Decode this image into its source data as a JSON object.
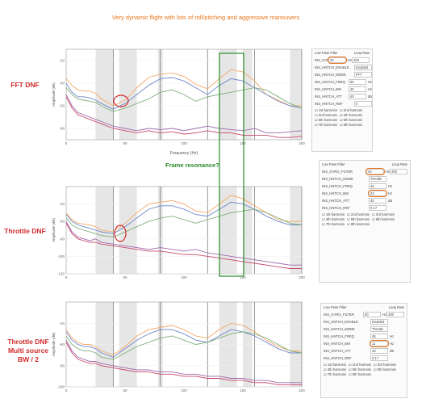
{
  "title": "Very dynamic flight with lots of roll/pitching and aggressive manouvers",
  "labels": {
    "fft": "FFT DNF",
    "throttle": "Throttle DNF",
    "multi_line1": "Throttle DNF",
    "multi_line2": "Multi source",
    "multi_line3": "BW / 2",
    "resonance": "Frame resonance?"
  },
  "colors": {
    "orange": "#f4a86a",
    "blue": "#6f86c9",
    "green": "#7fb07a",
    "purple": "#a06ab0",
    "red": "#c8486a",
    "annot_red": "#d22a2a",
    "annot_green": "#2a8a2a",
    "annot_orange": "#e8761d"
  },
  "chart_data": [
    {
      "type": "line",
      "xlabel": "Frequency (Hz)",
      "ylabel": "Amplitude (dB)",
      "xlim": [
        0,
        200
      ],
      "ylim": [
        -90,
        -10
      ],
      "xticks": [
        "0",
        "50",
        "100",
        "150",
        "200"
      ],
      "yticks": [
        "-20",
        "-40",
        "-60",
        "-80"
      ],
      "series": [
        {
          "color": "orange",
          "x": [
            0,
            5,
            10,
            15,
            20,
            25,
            30,
            40,
            50,
            60,
            70,
            80,
            90,
            100,
            110,
            120,
            130,
            140,
            150,
            160,
            170,
            180,
            190,
            200
          ],
          "y": [
            -36,
            -42,
            -46,
            -47,
            -47,
            -49,
            -54,
            -60,
            -55,
            -44,
            -35,
            -32,
            -31,
            -34,
            -41,
            -45,
            -36,
            -28,
            -30,
            -38,
            -50,
            -55,
            -60,
            -60
          ]
        },
        {
          "color": "blue",
          "x": [
            0,
            5,
            10,
            15,
            20,
            25,
            30,
            40,
            50,
            60,
            70,
            80,
            90,
            100,
            110,
            120,
            130,
            140,
            150,
            160,
            170,
            180,
            190,
            200
          ],
          "y": [
            -40,
            -48,
            -52,
            -52,
            -53,
            -55,
            -58,
            -63,
            -58,
            -50,
            -42,
            -36,
            -35,
            -38,
            -44,
            -50,
            -42,
            -36,
            -38,
            -44,
            -50,
            -56,
            -60,
            -62
          ]
        },
        {
          "color": "green",
          "x": [
            0,
            5,
            10,
            15,
            20,
            25,
            30,
            40,
            50,
            60,
            70,
            80,
            90,
            100,
            110,
            120,
            130,
            140,
            150,
            160,
            170,
            180,
            190,
            200
          ],
          "y": [
            -44,
            -50,
            -54,
            -55,
            -56,
            -57,
            -60,
            -65,
            -62,
            -58,
            -54,
            -48,
            -46,
            -50,
            -56,
            -52,
            -50,
            -48,
            -46,
            -44,
            -46,
            -52,
            -58,
            -62
          ]
        },
        {
          "color": "purple",
          "x": [
            0,
            5,
            10,
            15,
            20,
            25,
            30,
            40,
            50,
            60,
            70,
            80,
            90,
            100,
            110,
            120,
            130,
            140,
            150,
            160,
            170,
            180,
            190,
            200
          ],
          "y": [
            -50,
            -60,
            -66,
            -68,
            -70,
            -72,
            -74,
            -78,
            -80,
            -82,
            -80,
            -81,
            -80,
            -82,
            -80,
            -78,
            -80,
            -81,
            -82,
            -80,
            -84,
            -84,
            -83,
            -82
          ]
        },
        {
          "color": "red",
          "x": [
            0,
            5,
            10,
            15,
            20,
            25,
            30,
            40,
            50,
            60,
            70,
            80,
            90,
            100,
            110,
            120,
            130,
            140,
            150,
            160,
            170,
            180,
            190,
            200
          ],
          "y": [
            -52,
            -62,
            -68,
            -70,
            -72,
            -74,
            -76,
            -80,
            -82,
            -84,
            -82,
            -84,
            -83,
            -85,
            -84,
            -82,
            -84,
            -84,
            -86,
            -86,
            -86,
            -88,
            -88,
            -87
          ]
        }
      ]
    },
    {
      "type": "line",
      "xlabel": "",
      "ylabel": "Amplitude (dB)",
      "xlim": [
        0,
        200
      ],
      "ylim": [
        -120,
        -20
      ],
      "xticks": [
        "0",
        "50",
        "100",
        "150",
        "200"
      ],
      "yticks": [
        "-40",
        "-60",
        "-80",
        "-100",
        "-120"
      ],
      "series": [
        {
          "color": "orange",
          "x": [
            0,
            5,
            10,
            15,
            20,
            25,
            30,
            40,
            50,
            60,
            70,
            80,
            90,
            100,
            110,
            120,
            130,
            140,
            150,
            160,
            170,
            180,
            190,
            200
          ],
          "y": [
            -50,
            -58,
            -62,
            -63,
            -64,
            -66,
            -70,
            -72,
            -62,
            -50,
            -40,
            -38,
            -36,
            -40,
            -48,
            -50,
            -40,
            -30,
            -34,
            -42,
            -50,
            -58,
            -60,
            -60
          ]
        },
        {
          "color": "blue",
          "x": [
            0,
            5,
            10,
            15,
            20,
            25,
            30,
            40,
            50,
            60,
            70,
            80,
            90,
            100,
            110,
            120,
            130,
            140,
            150,
            160,
            170,
            180,
            190,
            200
          ],
          "y": [
            -52,
            -60,
            -64,
            -66,
            -68,
            -70,
            -72,
            -74,
            -66,
            -56,
            -46,
            -42,
            -42,
            -46,
            -52,
            -54,
            -46,
            -38,
            -40,
            -46,
            -54,
            -60,
            -64,
            -64
          ]
        },
        {
          "color": "green",
          "x": [
            0,
            5,
            10,
            15,
            20,
            25,
            30,
            40,
            50,
            60,
            70,
            80,
            90,
            100,
            110,
            120,
            130,
            140,
            150,
            160,
            170,
            180,
            190,
            200
          ],
          "y": [
            -56,
            -64,
            -68,
            -70,
            -72,
            -74,
            -76,
            -78,
            -72,
            -66,
            -60,
            -56,
            -54,
            -58,
            -62,
            -58,
            -54,
            -50,
            -48,
            -46,
            -50,
            -56,
            -62,
            -64
          ]
        },
        {
          "color": "purple",
          "x": [
            0,
            5,
            10,
            15,
            20,
            25,
            30,
            40,
            50,
            60,
            70,
            80,
            90,
            100,
            110,
            120,
            130,
            140,
            150,
            160,
            170,
            180,
            190,
            200
          ],
          "y": [
            -60,
            -72,
            -78,
            -80,
            -82,
            -80,
            -84,
            -86,
            -88,
            -90,
            -92,
            -90,
            -92,
            -94,
            -92,
            -96,
            -98,
            -100,
            -102,
            -104,
            -106,
            -108,
            -110,
            -110
          ]
        },
        {
          "color": "red",
          "x": [
            0,
            5,
            10,
            15,
            20,
            25,
            30,
            40,
            50,
            60,
            70,
            80,
            90,
            100,
            110,
            120,
            130,
            140,
            150,
            160,
            170,
            180,
            190,
            200
          ],
          "y": [
            -62,
            -74,
            -80,
            -82,
            -84,
            -84,
            -86,
            -88,
            -90,
            -92,
            -94,
            -94,
            -96,
            -98,
            -98,
            -100,
            -102,
            -104,
            -106,
            -108,
            -110,
            -112,
            -114,
            -114
          ]
        }
      ]
    },
    {
      "type": "line",
      "xlabel": "",
      "ylabel": "Amplitude (dB)",
      "xlim": [
        0,
        200
      ],
      "ylim": [
        -100,
        -20
      ],
      "xticks": [
        "0",
        "50",
        "100",
        "150",
        "200"
      ],
      "yticks": [
        "-40",
        "-60",
        "-80",
        "-100"
      ],
      "series": [
        {
          "color": "orange",
          "x": [
            0,
            5,
            10,
            15,
            20,
            25,
            30,
            40,
            50,
            60,
            70,
            80,
            90,
            100,
            110,
            120,
            130,
            140,
            150,
            160,
            170,
            180,
            190,
            200
          ],
          "y": [
            -46,
            -54,
            -58,
            -60,
            -60,
            -62,
            -66,
            -70,
            -62,
            -52,
            -46,
            -44,
            -42,
            -46,
            -52,
            -54,
            -46,
            -40,
            -42,
            -48,
            -56,
            -62,
            -66,
            -66
          ]
        },
        {
          "color": "blue",
          "x": [
            0,
            5,
            10,
            15,
            20,
            25,
            30,
            40,
            50,
            60,
            70,
            80,
            90,
            100,
            110,
            120,
            130,
            140,
            150,
            160,
            170,
            180,
            190,
            200
          ],
          "y": [
            -48,
            -56,
            -60,
            -62,
            -62,
            -64,
            -68,
            -72,
            -64,
            -56,
            -50,
            -46,
            -46,
            -50,
            -56,
            -58,
            -52,
            -46,
            -48,
            -52,
            -58,
            -64,
            -68,
            -68
          ]
        },
        {
          "color": "green",
          "x": [
            0,
            5,
            10,
            15,
            20,
            25,
            30,
            40,
            50,
            60,
            70,
            80,
            90,
            100,
            110,
            120,
            130,
            140,
            150,
            160,
            170,
            180,
            190,
            200
          ],
          "y": [
            -52,
            -60,
            -64,
            -66,
            -66,
            -68,
            -72,
            -74,
            -68,
            -62,
            -58,
            -54,
            -52,
            -56,
            -60,
            -58,
            -54,
            -50,
            -48,
            -50,
            -54,
            -60,
            -66,
            -68
          ]
        },
        {
          "color": "purple",
          "x": [
            0,
            5,
            10,
            15,
            20,
            25,
            30,
            40,
            50,
            60,
            70,
            80,
            90,
            100,
            110,
            120,
            130,
            140,
            150,
            160,
            170,
            180,
            190,
            200
          ],
          "y": [
            -56,
            -66,
            -72,
            -74,
            -76,
            -76,
            -78,
            -80,
            -82,
            -84,
            -84,
            -86,
            -86,
            -88,
            -88,
            -90,
            -90,
            -92,
            -92,
            -94,
            -94,
            -96,
            -96,
            -96
          ]
        },
        {
          "color": "red",
          "x": [
            0,
            5,
            10,
            15,
            20,
            25,
            30,
            40,
            50,
            60,
            70,
            80,
            90,
            100,
            110,
            120,
            130,
            140,
            150,
            160,
            170,
            180,
            190,
            200
          ],
          "y": [
            -58,
            -68,
            -74,
            -76,
            -78,
            -78,
            -80,
            -82,
            -84,
            -86,
            -86,
            -88,
            -88,
            -90,
            -90,
            -92,
            -92,
            -94,
            -94,
            -96,
            -96,
            -98,
            -98,
            -98
          ]
        }
      ]
    }
  ],
  "panels": [
    {
      "low_pass_title": "Low Pass Filter",
      "loop_rate_title": "Loop Rate",
      "rows": [
        {
          "label": "INS_GYRO_FILTER",
          "value": "40",
          "unit": "Hz"
        },
        {
          "label": "INS_HNTCH_ENABLE",
          "value": "Enabled",
          "unit": ""
        },
        {
          "label": "INS_HNTCH_MODE",
          "value": "FFT",
          "unit": ""
        },
        {
          "label": "INS_HNTCH_FREQ",
          "value": "80",
          "unit": "Hz"
        },
        {
          "label": "INS_HNTCH_BW",
          "value": "40",
          "unit": "Hz"
        },
        {
          "label": "INS_HNTCH_ATT",
          "value": "40",
          "unit": "dB"
        },
        {
          "label": "INS_HNTCH_REF",
          "value": "0",
          "unit": ""
        }
      ],
      "loop_value": "400",
      "checks": [
        "1st harmonic",
        "2nd harmonic",
        "3rd harmonic",
        "4th harmonic",
        "5th harmonic",
        "6th harmonic",
        "7th harmonic",
        "8th harmonic"
      ]
    },
    {
      "low_pass_title": "Low Pass Filter",
      "loop_rate_title": "Loop Rate",
      "rows": [
        {
          "label": "INS_GYRO_FILTER",
          "value": "40",
          "unit": "Hz"
        },
        {
          "label": "INS_HNTCH_MODE",
          "value": "Throttle",
          "unit": ""
        },
        {
          "label": "INS_HNTCH_FREQ",
          "value": "45",
          "unit": "Hz"
        },
        {
          "label": "INS_HNTCH_BW",
          "value": "22",
          "unit": "Hz"
        },
        {
          "label": "INS_HNTCH_ATT",
          "value": "40",
          "unit": "dB"
        },
        {
          "label": "INS_HNTCH_REF",
          "value": "0.17",
          "unit": ""
        }
      ],
      "loop_value": "400",
      "checks": [
        "1st harmonic",
        "2nd harmonic",
        "3rd harmonic",
        "4th harmonic",
        "5th harmonic",
        "6th harmonic",
        "7th harmonic",
        "8th harmonic"
      ]
    },
    {
      "low_pass_title": "Low Pass Filter",
      "loop_rate_title": "Loop Rate",
      "rows": [
        {
          "label": "INS_GYRO_FILTER",
          "value": "40",
          "unit": "Hz"
        },
        {
          "label": "INS_HNTCH_ENABLE",
          "value": "Enabled",
          "unit": ""
        },
        {
          "label": "INS_HNTCH_MODE",
          "value": "Throttle",
          "unit": ""
        },
        {
          "label": "INS_HNTCH_FREQ",
          "value": "45",
          "unit": "Hz"
        },
        {
          "label": "INS_HNTCH_BW",
          "value": "11",
          "unit": "Hz"
        },
        {
          "label": "INS_HNTCH_ATT",
          "value": "40",
          "unit": "dB"
        },
        {
          "label": "INS_HNTCH_REF",
          "value": "0.17",
          "unit": ""
        }
      ],
      "loop_value": "400",
      "checks": [
        "1st harmonic",
        "2nd harmonic",
        "3rd harmonic",
        "4th harmonic",
        "5th harmonic",
        "6th harmonic",
        "7th harmonic",
        "8th harmonic"
      ]
    }
  ]
}
